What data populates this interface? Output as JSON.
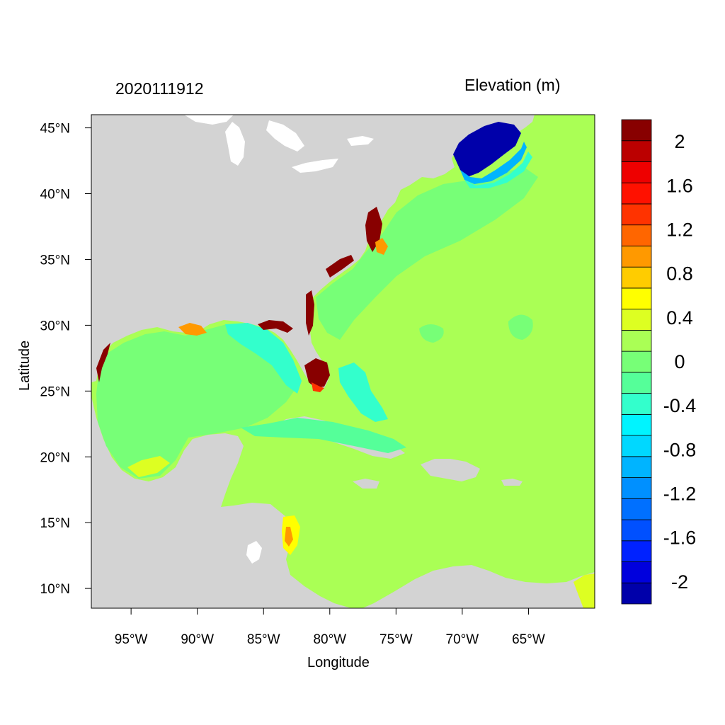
{
  "header": {
    "date": "2020111912",
    "variable": "Elevation (m)"
  },
  "chart_data": {
    "type": "heatmap",
    "title": "",
    "xlabel": "Longitude",
    "ylabel": "Latitude",
    "xlim": [
      -98,
      -60
    ],
    "ylim": [
      8.5,
      46
    ],
    "x_ticks": [
      {
        "value": -95,
        "label": "95°W"
      },
      {
        "value": -90,
        "label": "90°W"
      },
      {
        "value": -85,
        "label": "85°W"
      },
      {
        "value": -80,
        "label": "80°W"
      },
      {
        "value": -75,
        "label": "75°W"
      },
      {
        "value": -70,
        "label": "70°W"
      },
      {
        "value": -65,
        "label": "65°W"
      }
    ],
    "y_ticks": [
      {
        "value": 45,
        "label": "45°N"
      },
      {
        "value": 40,
        "label": "40°N"
      },
      {
        "value": 35,
        "label": "35°N"
      },
      {
        "value": 30,
        "label": "30°N"
      },
      {
        "value": 25,
        "label": "25°N"
      },
      {
        "value": 20,
        "label": "20°N"
      },
      {
        "value": 15,
        "label": "15°N"
      },
      {
        "value": 10,
        "label": "10°N"
      }
    ],
    "colorbar": {
      "label": "Elevation (m)",
      "levels": [
        -2.2,
        -2.0,
        -1.8,
        -1.6,
        -1.4,
        -1.2,
        -1.0,
        -0.8,
        -0.6,
        -0.4,
        -0.2,
        0.0,
        0.2,
        0.4,
        0.6,
        0.8,
        1.0,
        1.2,
        1.4,
        1.6,
        1.8,
        2.0,
        2.2
      ],
      "colors": [
        "#0000aa",
        "#0000dd",
        "#0022ff",
        "#0050ff",
        "#0070ff",
        "#0090ff",
        "#00b4ff",
        "#00d8ff",
        "#00f4ff",
        "#33ffcc",
        "#55ff99",
        "#77ff77",
        "#aaff55",
        "#ddff22",
        "#ffff00",
        "#ffcc00",
        "#ff9900",
        "#ff6600",
        "#ff3300",
        "#ff1100",
        "#ee0000",
        "#bb0000",
        "#880000"
      ],
      "tick_labels": [
        {
          "value": 2.0,
          "label": "2"
        },
        {
          "value": 1.6,
          "label": "1.6"
        },
        {
          "value": 1.2,
          "label": "1.2"
        },
        {
          "value": 0.8,
          "label": "0.8"
        },
        {
          "value": 0.4,
          "label": "0.4"
        },
        {
          "value": 0.0,
          "label": "0"
        },
        {
          "value": -0.4,
          "label": "-0.4"
        },
        {
          "value": -0.8,
          "label": "-0.8"
        },
        {
          "value": -1.2,
          "label": "-1.2"
        },
        {
          "value": -1.6,
          "label": "-1.6"
        },
        {
          "value": -2.0,
          "label": "-2"
        }
      ]
    },
    "colors": {
      "land": "#d3d3d3",
      "ocean_background": "#aaff55",
      "lakes": "#ffffff"
    }
  }
}
